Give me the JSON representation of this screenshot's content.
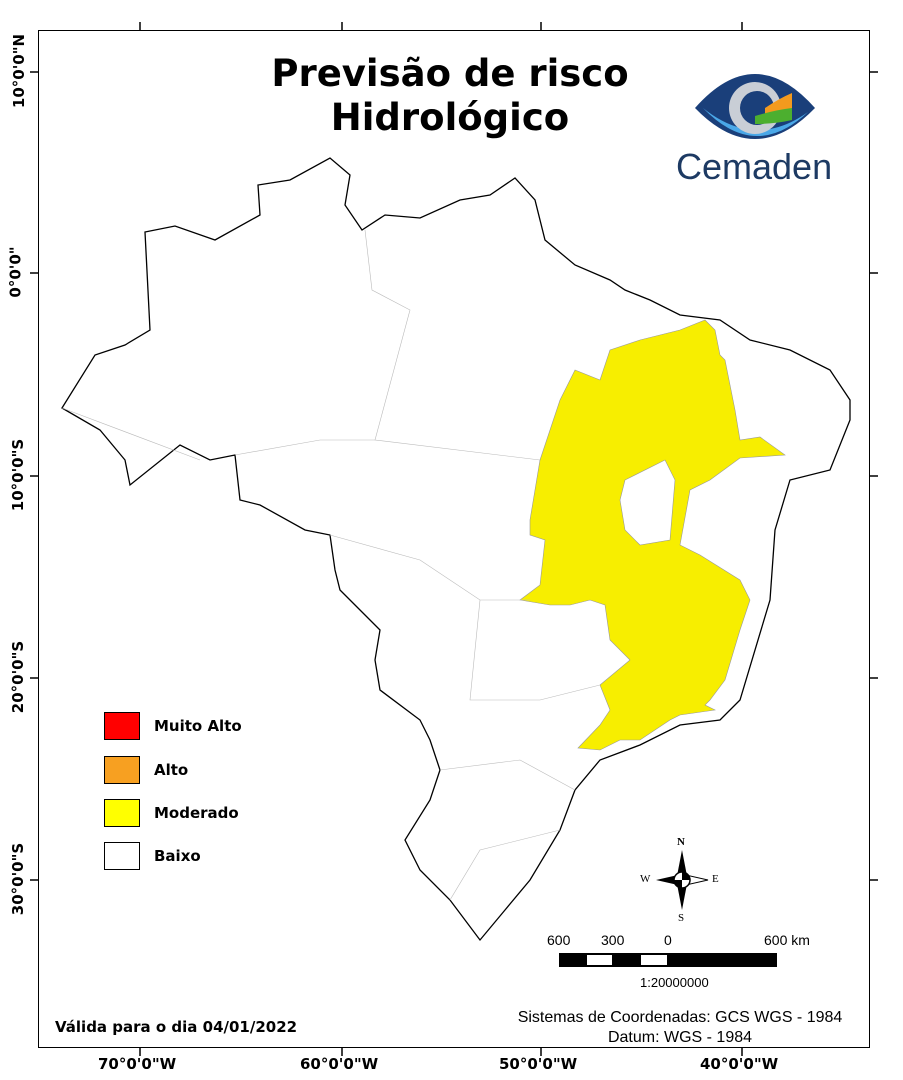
{
  "title": {
    "line1": "Previsão de risco",
    "line2": "Hidrológico"
  },
  "logo": {
    "name": "Cemaden",
    "colors": {
      "dark_blue": "#1a3f7a",
      "light_blue": "#4aa8e8",
      "orange": "#f39a1e",
      "green": "#4caf2f"
    }
  },
  "axes": {
    "latitude_labels": [
      "10°0'0\"N",
      "0°0'0\"",
      "10°0'0\"S",
      "20°0'0\"S",
      "30°0'0\"S"
    ],
    "longitude_labels": [
      "70°0'0\"W",
      "60°0'0\"W",
      "50°0'0\"W",
      "40°0'0\"W"
    ]
  },
  "legend": [
    {
      "label": "Muito Alto",
      "color": "#ff0000"
    },
    {
      "label": "Alto",
      "color": "#f7a021"
    },
    {
      "label": "Moderado",
      "color": "#ffff00"
    },
    {
      "label": "Baixo",
      "color": "#ffffff"
    }
  ],
  "map": {
    "region_fill": "#f7ee00",
    "background_fill": "#ffffff",
    "highlighted_risk": "Moderado"
  },
  "compass": {
    "n": "N",
    "s": "S",
    "e": "E",
    "w": "W"
  },
  "scale": {
    "labels": [
      "600",
      "300",
      "0",
      "600 km"
    ],
    "ratio": "1:20000000"
  },
  "validity": "Válida para o dia 04/01/2022",
  "coordinates": {
    "system": "Sistemas de Coordenadas: GCS WGS - 1984",
    "datum": "Datum: WGS - 1984"
  }
}
